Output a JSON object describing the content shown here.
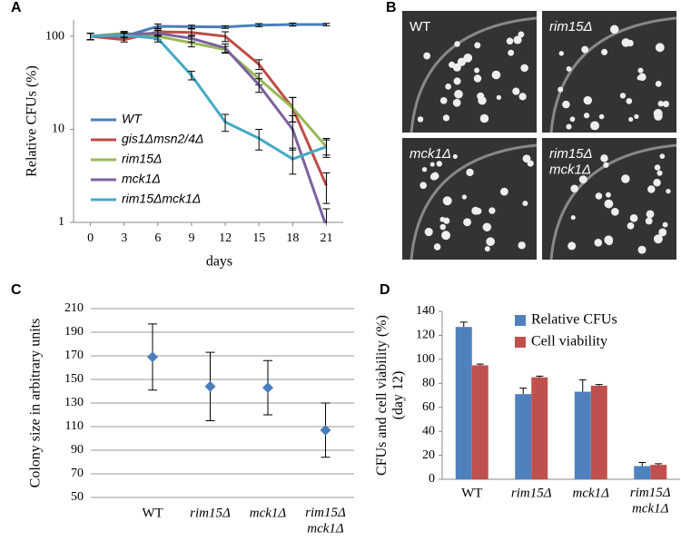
{
  "panel_labels": [
    "A",
    "B",
    "C",
    "D"
  ],
  "panel_b": {
    "images": [
      {
        "label": "WT"
      },
      {
        "label": "rim15Δ"
      },
      {
        "label": "mck1Δ"
      },
      {
        "label": "rim15Δ\nmck1Δ"
      }
    ]
  },
  "chart_data": [
    {
      "type": "line",
      "y_label": "Relative CFUs (%)",
      "x_label": "days",
      "x": [
        0,
        3,
        6,
        9,
        12,
        15,
        18,
        21
      ],
      "xlim": [
        -1.5,
        22.5
      ],
      "xticks": [
        0,
        3,
        6,
        9,
        12,
        15,
        18,
        21
      ],
      "ylim": [
        1,
        150
      ],
      "yticks": [
        1,
        10,
        100
      ],
      "log_y": true,
      "series": [
        {
          "name": "WT",
          "color": "#4a7ebb",
          "values": [
            100,
            100,
            128,
            127,
            126,
            132,
            134,
            134
          ],
          "errors": [
            8,
            5,
            8,
            5,
            4,
            5,
            5,
            4
          ]
        },
        {
          "name": "gis1Δmsn2/4Δ",
          "color": "#be4b48",
          "values": [
            100,
            92,
            112,
            110,
            100,
            50,
            17,
            2.5
          ],
          "errors": [
            8,
            5,
            10,
            10,
            12,
            6,
            5,
            0.9
          ]
        },
        {
          "name": "rim15Δ",
          "color": "#98b954",
          "values": [
            100,
            108,
            100,
            85,
            72,
            35,
            17,
            6.5
          ],
          "errors": [
            8,
            5,
            8,
            8,
            6,
            5,
            5,
            1.5
          ]
        },
        {
          "name": "mck1Δ",
          "color": "#7d60a0",
          "values": [
            100,
            105,
            108,
            95,
            75,
            30,
            10,
            0.9
          ],
          "errors": [
            8,
            5,
            8,
            8,
            8,
            5,
            4,
            0.5
          ]
        },
        {
          "name": "rim15Δmck1Δ",
          "color": "#46aac5",
          "values": [
            100,
            103,
            95,
            38,
            12,
            8,
            4.8,
            6.5
          ],
          "errors": [
            8,
            5,
            8,
            4,
            2.5,
            2,
            1.5,
            1.2
          ]
        }
      ]
    },
    {
      "type": "scatter",
      "y_label": "Colony size in arbitrary units",
      "categories": [
        "WT",
        "rim15Δ",
        "mck1Δ",
        "rim15Δ\nmck1Δ"
      ],
      "values": [
        169,
        144,
        143,
        107
      ],
      "errors": [
        28,
        29,
        23,
        23
      ],
      "color": "#4a7ebb",
      "marker": "diamond",
      "ylim": [
        50,
        210
      ],
      "yticks": [
        50,
        70,
        90,
        110,
        130,
        150,
        170,
        190,
        210
      ],
      "grid": true
    },
    {
      "type": "bar",
      "y_label": "CFUs and cell viability (%)\n(day 12)",
      "categories": [
        "WT",
        "rim15Δ",
        "mck1Δ",
        "rim15Δ\nmck1Δ"
      ],
      "series": [
        {
          "name": "Relative CFUs",
          "color": "#4f81bd",
          "values": [
            127,
            71,
            73,
            11
          ],
          "errors": [
            4,
            5,
            10,
            3
          ]
        },
        {
          "name": "Cell viability",
          "color": "#c0504d",
          "values": [
            95,
            85,
            78,
            12
          ],
          "errors": [
            1,
            1,
            1,
            1
          ]
        }
      ],
      "ylim": [
        0,
        140
      ],
      "yticks": [
        0,
        20,
        40,
        60,
        80,
        100,
        120,
        140
      ]
    }
  ]
}
